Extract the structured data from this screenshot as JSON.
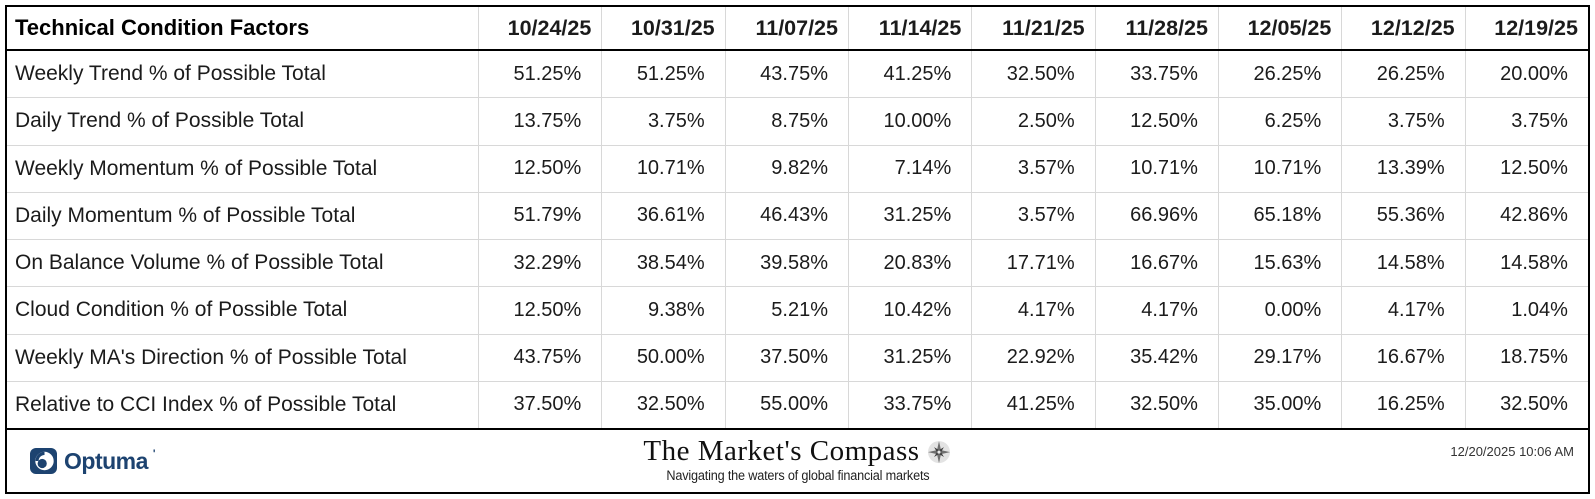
{
  "table": {
    "header": {
      "label": "Technical Condition Factors",
      "dates": [
        "10/24/25",
        "10/31/25",
        "11/07/25",
        "11/14/25",
        "11/21/25",
        "11/28/25",
        "12/05/25",
        "12/12/25",
        "12/19/25"
      ]
    },
    "rows": [
      {
        "label": "Weekly Trend % of Possible Total",
        "values": [
          "51.25%",
          "51.25%",
          "43.75%",
          "41.25%",
          "32.50%",
          "33.75%",
          "26.25%",
          "26.25%",
          "20.00%"
        ]
      },
      {
        "label": "Daily Trend % of Possible Total",
        "values": [
          "13.75%",
          "3.75%",
          "8.75%",
          "10.00%",
          "2.50%",
          "12.50%",
          "6.25%",
          "3.75%",
          "3.75%"
        ]
      },
      {
        "label": "Weekly Momentum % of Possible Total",
        "values": [
          "12.50%",
          "10.71%",
          "9.82%",
          "7.14%",
          "3.57%",
          "10.71%",
          "10.71%",
          "13.39%",
          "12.50%"
        ]
      },
      {
        "label": "Daily Momentum % of Possible Total",
        "values": [
          "51.79%",
          "36.61%",
          "46.43%",
          "31.25%",
          "3.57%",
          "66.96%",
          "65.18%",
          "55.36%",
          "42.86%"
        ]
      },
      {
        "label": "On Balance Volume % of Possible Total",
        "values": [
          "32.29%",
          "38.54%",
          "39.58%",
          "20.83%",
          "17.71%",
          "16.67%",
          "15.63%",
          "14.58%",
          "14.58%"
        ]
      },
      {
        "label": "Cloud Condition % of Possible Total",
        "values": [
          "12.50%",
          "9.38%",
          "5.21%",
          "10.42%",
          "4.17%",
          "4.17%",
          "0.00%",
          "4.17%",
          "1.04%"
        ]
      },
      {
        "label": "Weekly MA's Direction % of Possible Total",
        "values": [
          "43.75%",
          "50.00%",
          "37.50%",
          "31.25%",
          "22.92%",
          "35.42%",
          "29.17%",
          "16.67%",
          "18.75%"
        ]
      },
      {
        "label": "Relative to CCI Index % of Possible Total",
        "values": [
          "37.50%",
          "32.50%",
          "55.00%",
          "33.75%",
          "41.25%",
          "32.50%",
          "35.00%",
          "16.25%",
          "32.50%"
        ]
      }
    ]
  },
  "chart_data": {
    "type": "table",
    "title": "Technical Condition Factors",
    "columns": [
      "10/24/25",
      "10/31/25",
      "11/07/25",
      "11/14/25",
      "11/21/25",
      "11/28/25",
      "12/05/25",
      "12/12/25",
      "12/19/25"
    ],
    "unit": "percent",
    "rows": [
      {
        "label": "Weekly Trend % of Possible Total",
        "values": [
          51.25,
          51.25,
          43.75,
          41.25,
          32.5,
          33.75,
          26.25,
          26.25,
          20.0
        ]
      },
      {
        "label": "Daily Trend % of Possible Total",
        "values": [
          13.75,
          3.75,
          8.75,
          10.0,
          2.5,
          12.5,
          6.25,
          3.75,
          3.75
        ]
      },
      {
        "label": "Weekly Momentum % of Possible Total",
        "values": [
          12.5,
          10.71,
          9.82,
          7.14,
          3.57,
          10.71,
          10.71,
          13.39,
          12.5
        ]
      },
      {
        "label": "Daily Momentum % of Possible Total",
        "values": [
          51.79,
          36.61,
          46.43,
          31.25,
          3.57,
          66.96,
          65.18,
          55.36,
          42.86
        ]
      },
      {
        "label": "On Balance Volume % of Possible Total",
        "values": [
          32.29,
          38.54,
          39.58,
          20.83,
          17.71,
          16.67,
          15.63,
          14.58,
          14.58
        ]
      },
      {
        "label": "Cloud Condition % of Possible Total",
        "values": [
          12.5,
          9.38,
          5.21,
          10.42,
          4.17,
          4.17,
          0.0,
          4.17,
          1.04
        ]
      },
      {
        "label": "Weekly MA's Direction % of Possible Total",
        "values": [
          43.75,
          50.0,
          37.5,
          31.25,
          22.92,
          35.42,
          29.17,
          16.67,
          18.75
        ]
      },
      {
        "label": "Relative to CCI Index % of Possible Total",
        "values": [
          37.5,
          32.5,
          55.0,
          33.75,
          41.25,
          32.5,
          35.0,
          16.25,
          32.5
        ]
      }
    ]
  },
  "footer": {
    "optuma_label": "Optuma",
    "optuma_mark": "'",
    "brand_title": "The Market's Compass",
    "brand_subtitle": "Navigating the waters of global financial markets",
    "timestamp": "12/20/2025 10:06 AM"
  },
  "colors": {
    "navy": "#1d4370",
    "gridline": "#d8d8d8",
    "text": "#1b1b1b",
    "border": "#000000"
  }
}
